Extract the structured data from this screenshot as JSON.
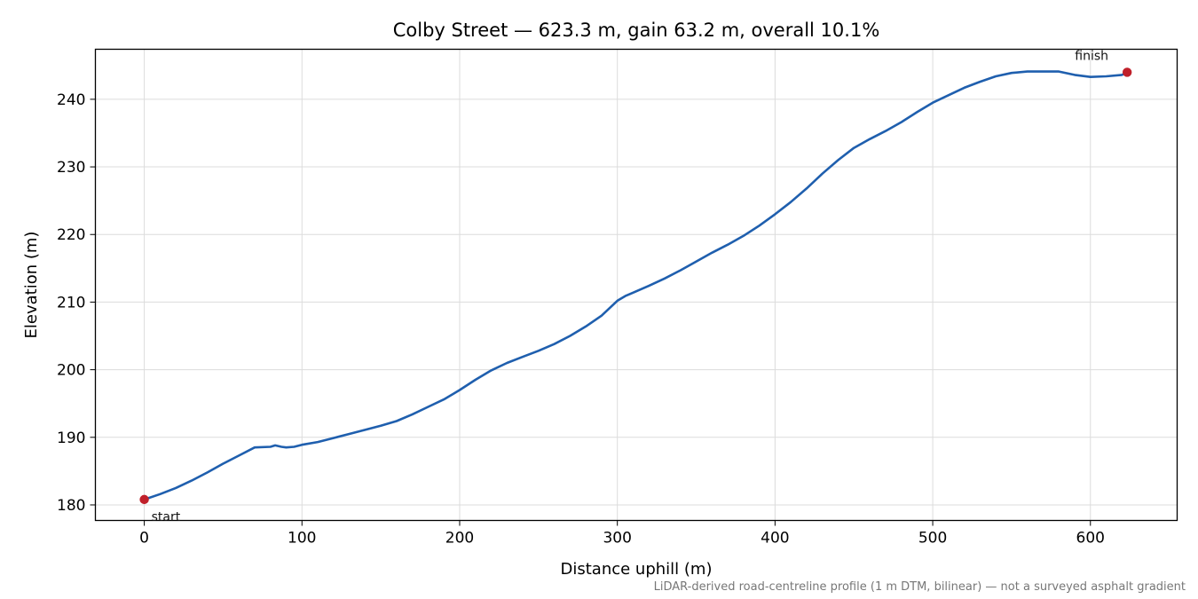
{
  "chart_data": {
    "type": "line",
    "title": "Colby Street — 623.3 m, gain 63.2 m, overall 10.1%",
    "xlabel": "Distance uphill (m)",
    "ylabel": "Elevation (m)",
    "xlim": [
      -31,
      655
    ],
    "ylim": [
      177.7,
      247.4
    ],
    "xticks": [
      0,
      100,
      200,
      300,
      400,
      500,
      600
    ],
    "yticks": [
      180,
      190,
      200,
      210,
      220,
      230,
      240
    ],
    "grid": true,
    "line_color": "#1f5fae",
    "marker_color": "#c0202a",
    "series": [
      {
        "x": [
          0,
          10,
          20,
          30,
          40,
          50,
          60,
          70,
          80,
          83,
          87,
          90,
          95,
          100,
          110,
          120,
          130,
          140,
          150,
          160,
          170,
          180,
          190,
          200,
          210,
          220,
          230,
          240,
          250,
          260,
          270,
          280,
          290,
          300,
          305,
          310,
          320,
          330,
          340,
          350,
          360,
          370,
          380,
          390,
          400,
          410,
          420,
          430,
          440,
          450,
          460,
          470,
          480,
          490,
          500,
          510,
          520,
          530,
          540,
          550,
          560,
          570,
          580,
          590,
          600,
          610,
          620,
          623.3
        ],
        "values": [
          180.8,
          181.6,
          182.5,
          183.6,
          184.8,
          186.1,
          187.3,
          188.5,
          188.6,
          188.8,
          188.6,
          188.5,
          188.6,
          188.9,
          189.3,
          189.9,
          190.5,
          191.1,
          191.7,
          192.4,
          193.4,
          194.5,
          195.6,
          197.0,
          198.5,
          199.9,
          201.0,
          201.9,
          202.8,
          203.8,
          205.0,
          206.4,
          208.0,
          210.2,
          210.9,
          211.4,
          212.4,
          213.5,
          214.7,
          216.0,
          217.3,
          218.5,
          219.8,
          221.3,
          223.0,
          224.8,
          226.8,
          229.0,
          231.0,
          232.8,
          234.1,
          235.3,
          236.6,
          238.1,
          239.5,
          240.6,
          241.7,
          242.6,
          243.4,
          243.9,
          244.1,
          244.1,
          244.1,
          243.6,
          243.3,
          243.4,
          243.6,
          244.0
        ]
      }
    ],
    "annotations": [
      {
        "label": "start",
        "x": 0,
        "y": 180.8
      },
      {
        "label": "finish",
        "x": 623.3,
        "y": 244.0
      }
    ],
    "footnote": "LiDAR-derived road-centreline profile (1 m DTM, bilinear) — not a surveyed asphalt gradient"
  }
}
